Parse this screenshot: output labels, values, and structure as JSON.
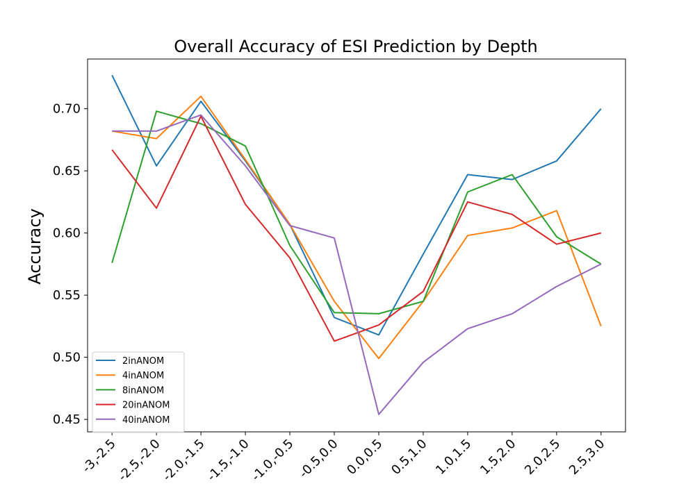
{
  "chart_data": {
    "type": "line",
    "title": "Overall Accuracy of ESI Prediction by Depth",
    "xlabel": "",
    "ylabel": "Accuracy",
    "categories": [
      "-3,-2.5",
      "-2.5,-2.0",
      "-2.0,-1.5",
      "-1.5,-1.0",
      "-1.0,-0.5",
      "-0.5,0.0",
      "0.0,0.5",
      "0.5,1.0",
      "1.0,1.5",
      "1.5,2.0",
      "2.0,2.5",
      "2.5,3.0"
    ],
    "yticks": [
      0.45,
      0.5,
      0.55,
      0.6,
      0.65,
      0.7
    ],
    "ytick_labels": [
      "0.45",
      "0.50",
      "0.55",
      "0.60",
      "0.65",
      "0.70"
    ],
    "ylim": [
      0.44,
      0.74
    ],
    "grid": false,
    "legend_position": "lower-left",
    "series": [
      {
        "name": "2inANOM",
        "color": "#1f77b4",
        "values": [
          0.727,
          0.654,
          0.706,
          0.658,
          0.607,
          0.532,
          0.518,
          0.583,
          0.647,
          0.643,
          0.658,
          0.7
        ]
      },
      {
        "name": "4inANOM",
        "color": "#ff7f0e",
        "values": [
          0.682,
          0.676,
          0.71,
          0.659,
          0.607,
          0.545,
          0.499,
          0.545,
          0.598,
          0.604,
          0.618,
          0.525
        ]
      },
      {
        "name": "8inANOM",
        "color": "#2ca02c",
        "values": [
          0.576,
          0.698,
          0.688,
          0.67,
          0.59,
          0.536,
          0.535,
          0.545,
          0.633,
          0.647,
          0.597,
          0.575
        ]
      },
      {
        "name": "20inANOM",
        "color": "#d62728",
        "values": [
          0.667,
          0.62,
          0.694,
          0.623,
          0.58,
          0.513,
          0.526,
          0.553,
          0.625,
          0.615,
          0.591,
          0.6
        ]
      },
      {
        "name": "40inANOM",
        "color": "#9467bd",
        "values": [
          0.682,
          0.682,
          0.695,
          0.654,
          0.606,
          0.596,
          0.454,
          0.496,
          0.523,
          0.535,
          0.557,
          0.575
        ]
      }
    ]
  }
}
